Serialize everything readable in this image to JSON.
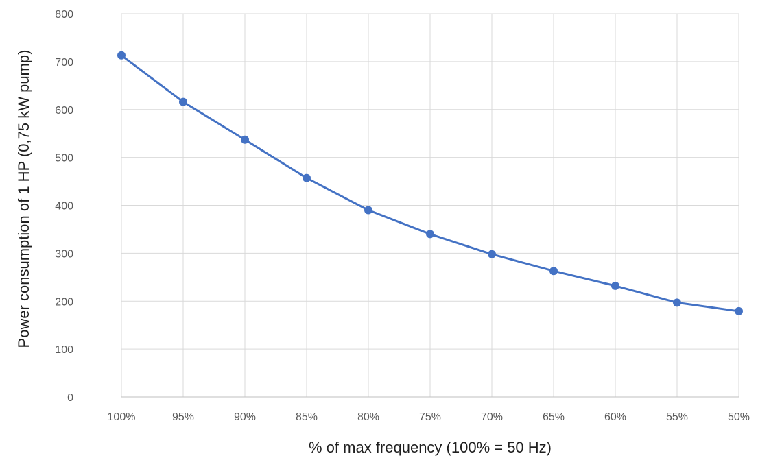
{
  "chart_data": {
    "type": "line",
    "categories": [
      "100%",
      "95%",
      "90%",
      "85%",
      "80%",
      "75%",
      "70%",
      "65%",
      "60%",
      "55%",
      "50%"
    ],
    "series": [
      {
        "values": [
          713,
          616,
          537,
          457,
          390,
          340,
          298,
          263,
          232,
          197,
          179
        ],
        "color": "#4472c4"
      }
    ],
    "xlabel": "% of max frequency (100% = 50 Hz)",
    "ylabel": "Power consumption of 1 HP (0,75 kW pump)",
    "ylim": [
      0,
      800
    ],
    "yticks": [
      0,
      100,
      200,
      300,
      400,
      500,
      600,
      700,
      800
    ],
    "grid": true,
    "legend": "none"
  }
}
